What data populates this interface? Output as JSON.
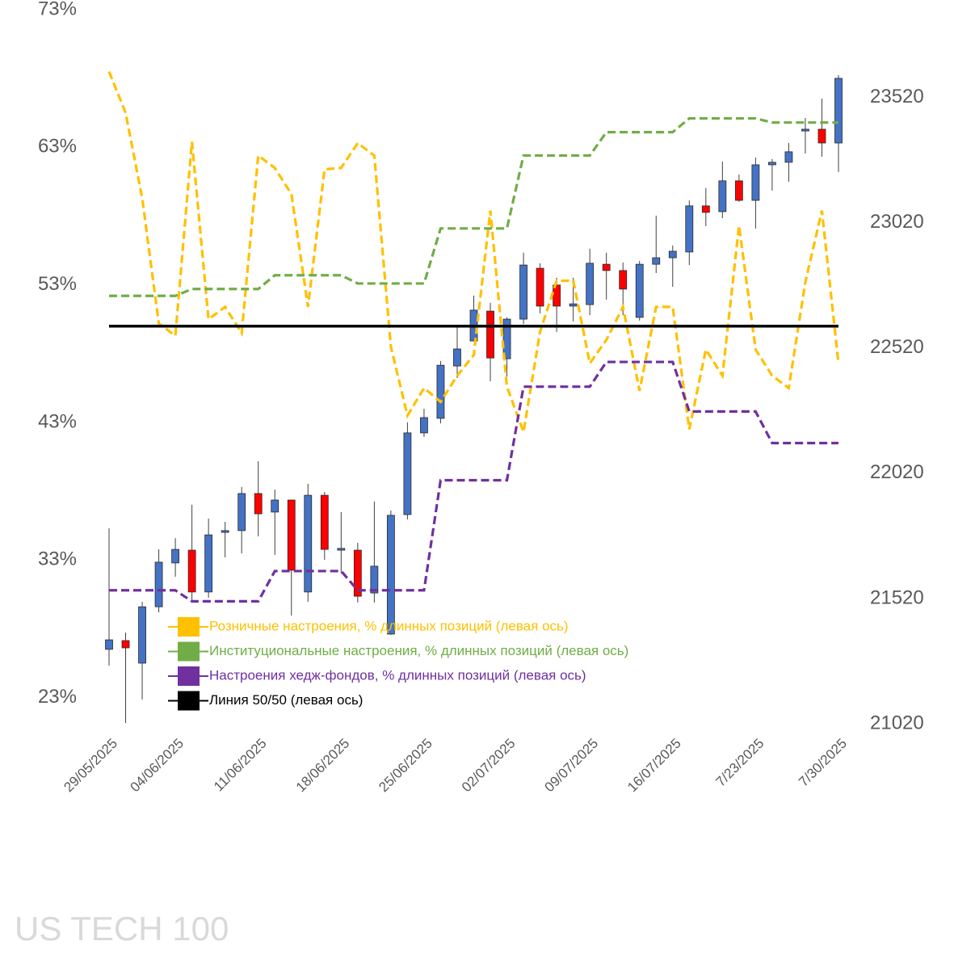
{
  "chart_data": {
    "type": "candlestick",
    "title": "US TECH 100",
    "categories": [
      "29/05/2025",
      null,
      null,
      null,
      "04/06/2025",
      null,
      null,
      null,
      null,
      "11/06/2025",
      null,
      null,
      null,
      null,
      "18/06/2025",
      null,
      null,
      null,
      null,
      "25/06/2025",
      null,
      null,
      null,
      null,
      "02/07/2025",
      null,
      null,
      null,
      null,
      "09/07/2025",
      null,
      null,
      null,
      null,
      "16/07/2025",
      null,
      null,
      null,
      null,
      "7/23/2025",
      null,
      null,
      null,
      null,
      "7/30/2025"
    ],
    "candles": {
      "axis": "y2",
      "up_color": "#4472c4",
      "down_color": "#ff0000",
      "open": [
        21317,
        21352,
        21262,
        21487,
        21662,
        21713,
        21546,
        21784,
        21791,
        21939,
        21865,
        21913,
        21546,
        21932,
        21713,
        21713,
        21542,
        21378,
        21855,
        22181,
        22239,
        22448,
        22548,
        22667,
        22477,
        22635,
        22838,
        22771,
        22687,
        22693,
        22854,
        22829,
        22642,
        22854,
        22880,
        22903,
        23087,
        23064,
        23187,
        23109,
        23251,
        23261,
        23386,
        23393,
        23338
      ],
      "high": [
        21800,
        21384,
        21507,
        21716,
        21761,
        21894,
        21839,
        21826,
        21965,
        22068,
        21955,
        21913,
        21978,
        21945,
        21865,
        21742,
        21907,
        21871,
        22223,
        22277,
        22468,
        22606,
        22729,
        22700,
        22642,
        22900,
        22858,
        22800,
        22800,
        22916,
        22900,
        22861,
        22867,
        23048,
        22929,
        23109,
        23158,
        23264,
        23212,
        23280,
        23274,
        23338,
        23438,
        23515,
        23609
      ],
      "low": [
        21252,
        21023,
        21117,
        21465,
        21607,
        21507,
        21523,
        21684,
        21700,
        21768,
        21694,
        21452,
        21507,
        21674,
        21620,
        21504,
        21504,
        21375,
        21836,
        22165,
        22219,
        22400,
        22548,
        22387,
        22406,
        22616,
        22658,
        22584,
        22626,
        22651,
        22713,
        22651,
        22629,
        22819,
        22764,
        22851,
        23006,
        23038,
        23103,
        22996,
        23148,
        23183,
        23296,
        23283,
        23222
      ],
      "close": [
        21355,
        21323,
        21487,
        21665,
        21716,
        21546,
        21774,
        21791,
        21939,
        21858,
        21913,
        21633,
        21932,
        21716,
        21720,
        21529,
        21649,
        21852,
        22181,
        22242,
        22451,
        22516,
        22671,
        22480,
        22635,
        22851,
        22687,
        22687,
        22696,
        22858,
        22829,
        22755,
        22854,
        22880,
        22906,
        23087,
        23061,
        23187,
        23109,
        23251,
        23261,
        23303,
        23393,
        23338,
        23596
      ]
    },
    "series": [
      {
        "name": "Розничные настроения, % длинных позиций (левая ось)",
        "color": "#ffc000",
        "values": [
          68.5,
          65.5,
          59.3,
          50.2,
          49.3,
          63.4,
          50.5,
          51.4,
          49.5,
          62.4,
          61.5,
          59.6,
          51.4,
          61.4,
          61.5,
          63.3,
          62.4,
          48.5,
          43.5,
          45.5,
          44.5,
          46.4,
          47.9,
          58.4,
          45.6,
          42.3,
          49.6,
          53.3,
          53.3,
          47.3,
          49.0,
          51.4,
          45.3,
          51.4,
          51.4,
          42.5,
          48.3,
          46.4,
          57.3,
          48.3,
          46.4,
          45.5,
          53.2,
          58.4,
          47.3
        ]
      },
      {
        "name": "Институциональные настроения, % длинных позиций (левая ось)",
        "color": "#70ad47",
        "values": [
          52.2,
          52.2,
          52.2,
          52.2,
          52.2,
          52.7,
          52.7,
          52.7,
          52.7,
          52.7,
          53.7,
          53.7,
          53.7,
          53.7,
          53.7,
          53.1,
          53.1,
          53.1,
          53.1,
          53.1,
          57.1,
          57.1,
          57.1,
          57.1,
          57.1,
          62.4,
          62.4,
          62.4,
          62.4,
          62.4,
          64.1,
          64.1,
          64.1,
          64.1,
          64.1,
          65.1,
          65.1,
          65.1,
          65.1,
          65.1,
          64.8,
          64.8,
          64.8,
          64.8,
          64.8
        ]
      },
      {
        "name": "Настроения хедж-фондов, % длинных позиций (левая ось)",
        "color": "#7030a0",
        "values": [
          30.8,
          30.8,
          30.8,
          30.8,
          30.8,
          30.0,
          30.0,
          30.0,
          30.0,
          30.0,
          32.2,
          32.2,
          32.2,
          32.2,
          32.2,
          30.8,
          30.8,
          30.8,
          30.8,
          30.8,
          38.8,
          38.8,
          38.8,
          38.8,
          38.8,
          45.6,
          45.6,
          45.6,
          45.6,
          45.6,
          47.4,
          47.4,
          47.4,
          47.4,
          47.4,
          43.8,
          43.8,
          43.8,
          43.8,
          43.8,
          41.5,
          41.5,
          41.5,
          41.5,
          41.5
        ]
      },
      {
        "name": "Линия 50/50 (левая ось)",
        "color": "#000000",
        "value": 50
      }
    ],
    "ylim": [
      21.1,
      73
    ],
    "yticks": [
      {
        "value": 23,
        "label": "23%"
      },
      {
        "value": 33,
        "label": "33%"
      },
      {
        "value": 43,
        "label": "43%"
      },
      {
        "value": 53,
        "label": "53%"
      },
      {
        "value": 63,
        "label": "63%"
      },
      {
        "value": 73,
        "label": "73%"
      }
    ],
    "y2lim": [
      21020,
      23870
    ],
    "y2ticks": [
      21020,
      21520,
      22020,
      22520,
      23020,
      23520
    ]
  }
}
